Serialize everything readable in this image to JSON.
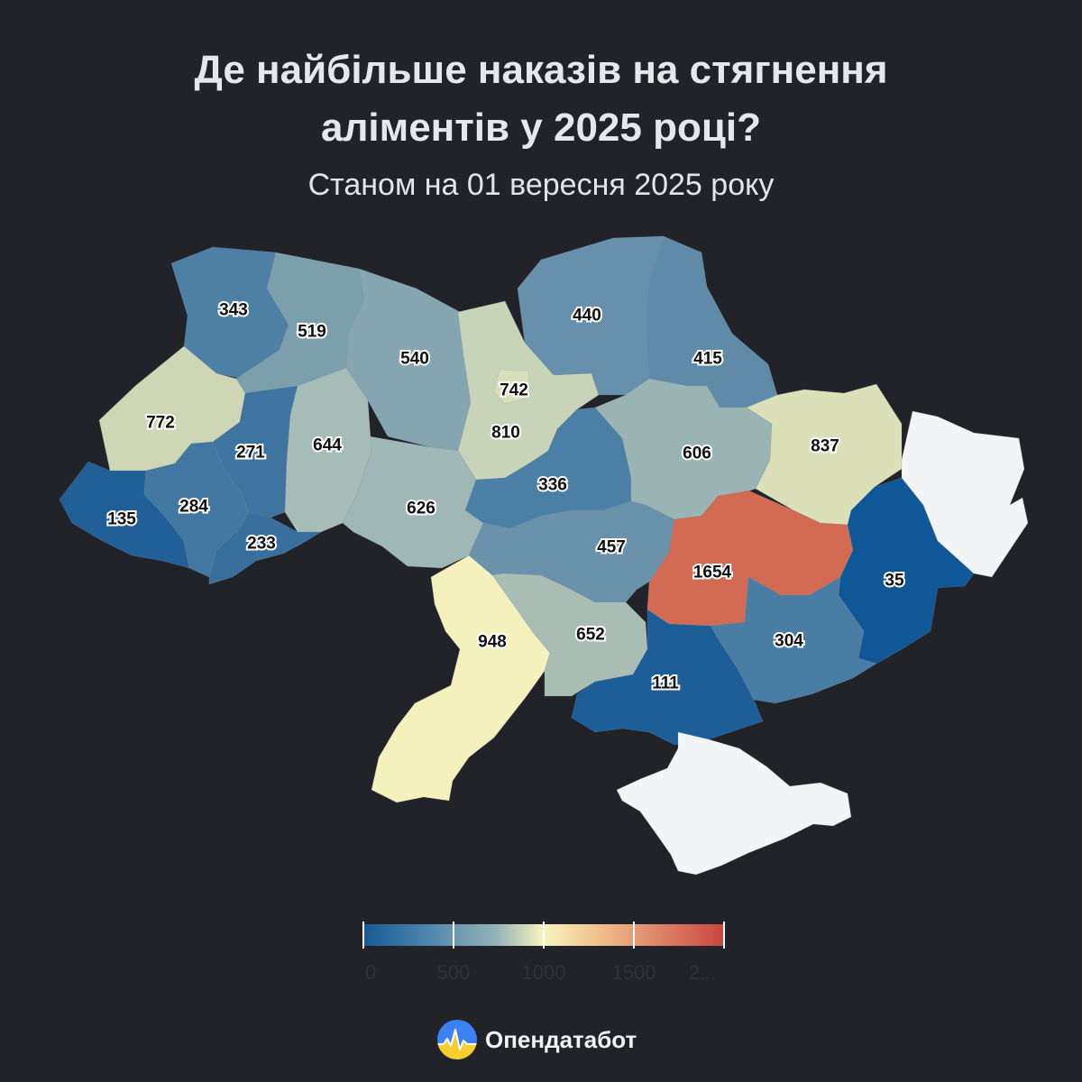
{
  "title": "Де найбільше наказів на стягнення аліментів у 2025 році?",
  "title_line1": "Де найбільше наказів на стягнення",
  "title_line2": "аліментів у 2025 році?",
  "subtitle": "Станом на 01 вересня 2025 року",
  "regions": [
    {
      "id": "volyn",
      "value": 343,
      "label": "343",
      "color": "#4e7fa5"
    },
    {
      "id": "rivne",
      "value": 519,
      "label": "519",
      "color": "#7c9fad"
    },
    {
      "id": "zhytomyr",
      "value": 540,
      "label": "540",
      "color": "#85a6b1"
    },
    {
      "id": "kyiv-oblast",
      "value": 742,
      "label": "742",
      "color": "#c8d4b8"
    },
    {
      "id": "kyiv-city",
      "value": 810,
      "label": "810",
      "color": "#d9dfb9"
    },
    {
      "id": "chernihiv",
      "value": 440,
      "label": "440",
      "color": "#6690ab"
    },
    {
      "id": "sumy",
      "value": 415,
      "label": "415",
      "color": "#5f8ba9"
    },
    {
      "id": "lviv",
      "value": 772,
      "label": "772",
      "color": "#cfd6b5"
    },
    {
      "id": "ternopil",
      "value": 271,
      "label": "271",
      "color": "#3f74a0"
    },
    {
      "id": "khmelnytskyi",
      "value": 644,
      "label": "644",
      "color": "#a6bcb6"
    },
    {
      "id": "vinnytsia",
      "value": 626,
      "label": "626",
      "color": "#a0b8b5"
    },
    {
      "id": "cherkasy",
      "value": 336,
      "label": "336",
      "color": "#4c7fa5"
    },
    {
      "id": "poltava",
      "value": 606,
      "label": "606",
      "color": "#9ab4b4"
    },
    {
      "id": "kharkiv",
      "value": 837,
      "label": "837",
      "color": "#dbe0b8"
    },
    {
      "id": "zakarpattia",
      "value": 135,
      "label": "135",
      "color": "#205f98"
    },
    {
      "id": "ivano-frankivsk",
      "value": 284,
      "label": "284",
      "color": "#4277a1"
    },
    {
      "id": "chernivtsi",
      "value": 233,
      "label": "233",
      "color": "#386f9d"
    },
    {
      "id": "kirovohrad",
      "value": 457,
      "label": "457",
      "color": "#6a92ab"
    },
    {
      "id": "dnipropetrovsk",
      "value": 1654,
      "label": "1654",
      "color": "#d26a54"
    },
    {
      "id": "donetsk",
      "value": 35,
      "label": "35",
      "color": "#0f5796"
    },
    {
      "id": "luhansk",
      "value": null,
      "label": "",
      "color": "#f3f4f6"
    },
    {
      "id": "odesa",
      "value": 948,
      "label": "948",
      "color": "#f4f1bc"
    },
    {
      "id": "mykolaiv",
      "value": 652,
      "label": "652",
      "color": "#a9bdb5"
    },
    {
      "id": "zaporizhzhia",
      "value": 304,
      "label": "304",
      "color": "#4a7da4"
    },
    {
      "id": "kherson",
      "value": 111,
      "label": "111",
      "color": "#1d5e98"
    },
    {
      "id": "crimea",
      "value": null,
      "label": "",
      "color": "#f3f4f6"
    }
  ],
  "legend": {
    "min": 0,
    "max": 2000,
    "labels": [
      "0",
      "500",
      "1000",
      "1500",
      "2..."
    ],
    "colors": [
      "#165a96",
      "#96b4b8",
      "#f7f4bf",
      "#e08b6c",
      "#c9453f"
    ]
  },
  "brand": {
    "name": "Опендатабот",
    "icon": "opendatabot-logo-icon",
    "colors": {
      "top": "#3b82f6",
      "bottom": "#f6cf2f"
    }
  },
  "colors": {
    "background": "#212328",
    "no_data": "#f3f4f6"
  }
}
